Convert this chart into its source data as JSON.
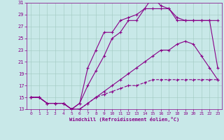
{
  "xlabel": "Windchill (Refroidissement éolien,°C)",
  "xlim": [
    -0.5,
    23.5
  ],
  "ylim": [
    13,
    31
  ],
  "xticks": [
    0,
    1,
    2,
    3,
    4,
    5,
    6,
    7,
    8,
    9,
    10,
    11,
    12,
    13,
    14,
    15,
    16,
    17,
    18,
    19,
    20,
    21,
    22,
    23
  ],
  "yticks": [
    13,
    15,
    17,
    19,
    21,
    23,
    25,
    27,
    29,
    31
  ],
  "bg_color": "#c8e8e8",
  "line_color": "#880088",
  "grid_color": "#a0c8c0",
  "lines": [
    {
      "x": [
        0,
        1,
        2,
        3,
        4,
        5,
        6,
        7,
        8,
        9,
        10,
        11,
        12,
        13,
        14,
        15,
        16,
        17,
        18,
        19,
        20,
        21,
        22,
        23
      ],
      "y": [
        15,
        15,
        14,
        14,
        14,
        13,
        13,
        14,
        15,
        15.5,
        16,
        16.5,
        17,
        17,
        17.5,
        18,
        18,
        18,
        18,
        18,
        18,
        18,
        18,
        18
      ],
      "ls": "--"
    },
    {
      "x": [
        0,
        1,
        2,
        3,
        4,
        5,
        6,
        7,
        8,
        9,
        10,
        11,
        12,
        13,
        14,
        15,
        16,
        17,
        18,
        19,
        20,
        21,
        22,
        23
      ],
      "y": [
        15,
        15,
        14,
        14,
        14,
        13,
        13,
        14,
        15,
        16,
        17,
        18,
        19,
        20,
        21,
        22,
        23,
        23,
        24,
        24.5,
        24,
        22,
        20,
        18
      ],
      "ls": "-"
    },
    {
      "x": [
        0,
        1,
        2,
        3,
        4,
        5,
        6,
        7,
        8,
        9,
        10,
        11,
        12,
        13,
        14,
        15,
        16,
        17,
        18,
        19,
        20,
        21,
        22,
        23
      ],
      "y": [
        15,
        15,
        14,
        14,
        14,
        13,
        14,
        17,
        19.5,
        22,
        25,
        26,
        28,
        28,
        30,
        30,
        30,
        30,
        28,
        28,
        28,
        28,
        28,
        28
      ],
      "ls": "-"
    },
    {
      "x": [
        0,
        1,
        2,
        3,
        4,
        5,
        6,
        7,
        8,
        9,
        10,
        11,
        12,
        13,
        14,
        15,
        16,
        17,
        18,
        19,
        20,
        21,
        22,
        23
      ],
      "y": [
        15,
        15,
        14,
        14,
        14,
        13,
        14,
        20,
        23,
        26,
        26,
        28,
        28.5,
        29,
        30,
        32,
        30.5,
        30,
        28.5,
        28,
        28,
        28,
        28,
        20
      ],
      "ls": "-"
    }
  ]
}
